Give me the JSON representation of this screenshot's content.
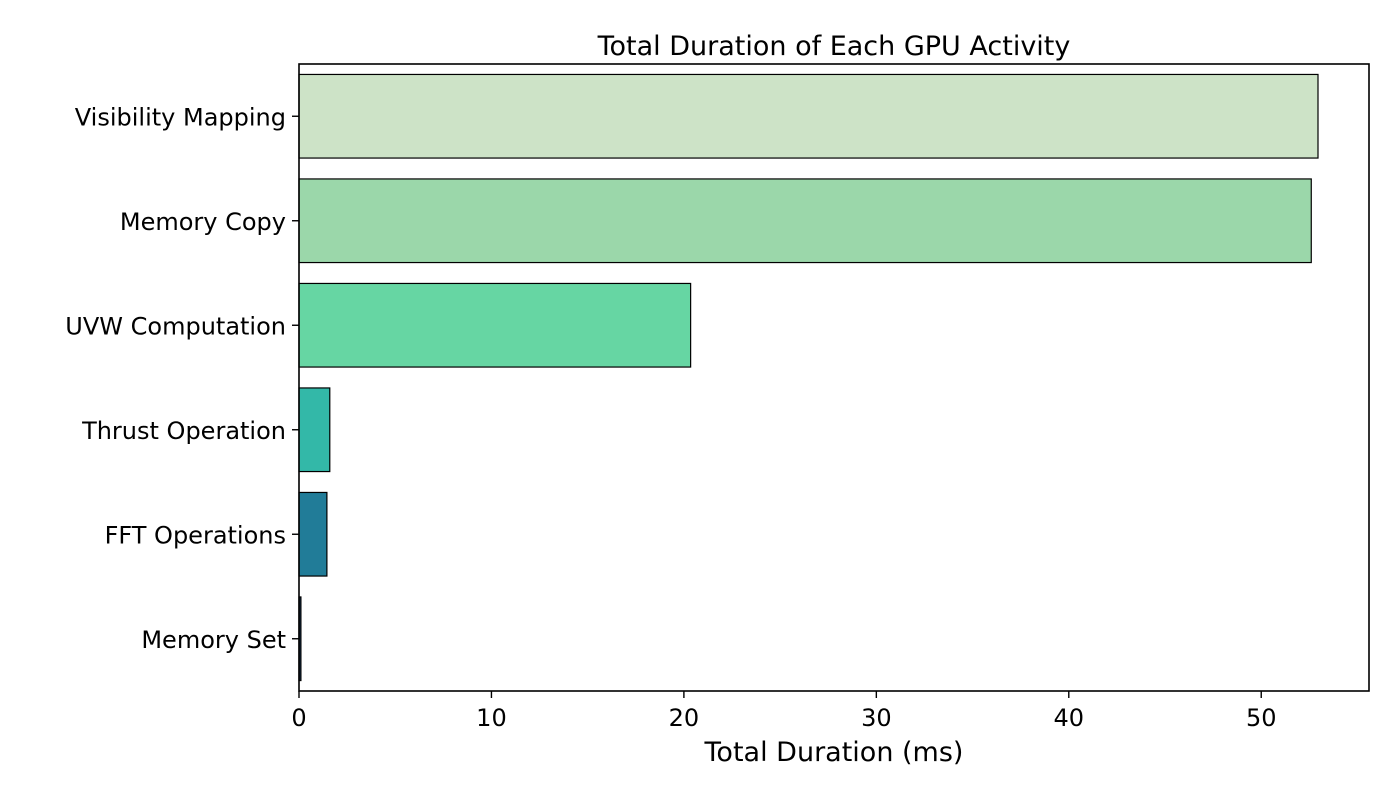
{
  "chart_data": {
    "type": "bar",
    "orientation": "horizontal",
    "title": "Total Duration of Each GPU Activity",
    "xlabel": "Total Duration (ms)",
    "ylabel": "",
    "categories": [
      "Visibility Mapping",
      "Memory Copy",
      "UVW Computation",
      "Thrust Operation",
      "FFT Operations",
      "Memory Set"
    ],
    "values": [
      52.95,
      52.6,
      20.35,
      1.6,
      1.45,
      0.1
    ],
    "colors": [
      "#cde3c7",
      "#9bd7aa",
      "#66d6a3",
      "#33b8a8",
      "#217c98",
      "#1a3b5c"
    ],
    "xlim": [
      0,
      55.6
    ],
    "xticks": [
      0,
      10,
      20,
      30,
      40,
      50
    ],
    "xtick_labels": [
      "0",
      "10",
      "20",
      "30",
      "40",
      "50"
    ],
    "grid": false,
    "legend": false
  }
}
